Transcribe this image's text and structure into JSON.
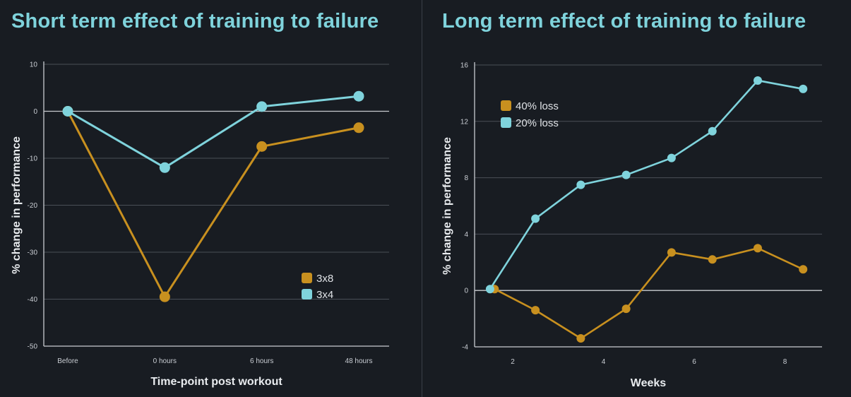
{
  "chart_data": [
    {
      "type": "line",
      "title": "Short term effect of training to failure",
      "xlabel": "Time-point post workout",
      "ylabel": "% change in performance",
      "categories": [
        "Before",
        "0 hours",
        "6 hours",
        "48 hours"
      ],
      "yticks": [
        10,
        0,
        -10,
        -20,
        -30,
        -40,
        -50
      ],
      "ylim": [
        -50,
        10
      ],
      "grid": true,
      "legend_position": "lower-right",
      "series": [
        {
          "name": "3x8",
          "color": "#c8901f",
          "values": [
            0,
            -39.5,
            -7.5,
            -3.5
          ]
        },
        {
          "name": "3x4",
          "color": "#7fd3dc",
          "values": [
            0,
            -12,
            1,
            3.2
          ]
        }
      ]
    },
    {
      "type": "line",
      "title": "Long term effect of training to failure",
      "xlabel": "Weeks",
      "ylabel": "% change in performance",
      "xticks": [
        2,
        4,
        6,
        8
      ],
      "yticks": [
        16,
        12,
        8,
        4,
        0,
        -4
      ],
      "ylim": [
        -4,
        16
      ],
      "grid": true,
      "legend_position": "upper-left",
      "series": [
        {
          "name": "40% loss",
          "color": "#c8901f",
          "x": [
            1.6,
            2.5,
            3.5,
            4.5,
            5.5,
            6.4,
            7.4,
            8.4
          ],
          "values": [
            0.1,
            -1.4,
            -3.4,
            -1.3,
            2.7,
            2.2,
            3.0,
            1.5
          ]
        },
        {
          "name": "20% loss",
          "color": "#7fd3dc",
          "x": [
            1.5,
            2.5,
            3.5,
            4.5,
            5.5,
            6.4,
            7.4,
            8.4
          ],
          "values": [
            0.1,
            5.1,
            7.5,
            8.2,
            9.4,
            11.3,
            14.9,
            14.3
          ]
        }
      ]
    }
  ]
}
